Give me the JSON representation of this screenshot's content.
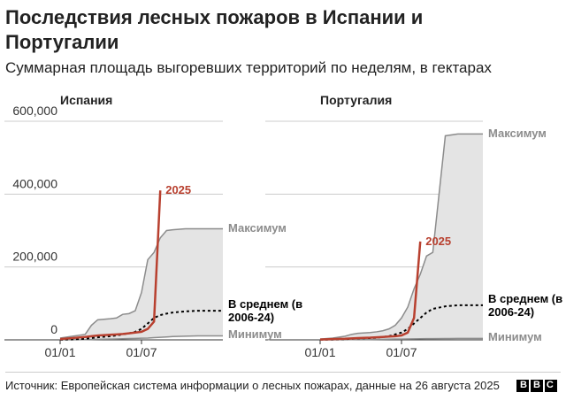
{
  "title": "Последствия лесных пожаров в Испании и Португалии",
  "subtitle": "Суммарная площадь выгоревших территорий по неделям, в гектарах",
  "source": "Источник: Европейская система информации о лесных пожарах, данные на 26 августа 2025",
  "logo": "BBC",
  "chart_data": [
    {
      "type": "area-line",
      "title": "Испания",
      "x": [
        0,
        4,
        8,
        10,
        12,
        16,
        18,
        20,
        22,
        24,
        26,
        28,
        30,
        32,
        34,
        36,
        40,
        44,
        48,
        52
      ],
      "xlim": [
        0,
        52
      ],
      "xticks": [
        {
          "value": 0,
          "label": "01/01"
        },
        {
          "value": 26,
          "label": "01/07"
        }
      ],
      "ylim": [
        0,
        600000
      ],
      "yticks": [
        {
          "value": 0,
          "label": "0"
        },
        {
          "value": 200000,
          "label": "200,000"
        },
        {
          "value": 400000,
          "label": "400,000"
        },
        {
          "value": 600000,
          "label": "600,000"
        }
      ],
      "grid": true,
      "series": [
        {
          "name": "Максимум",
          "color": "#8c8c8c",
          "values": [
            5000,
            10000,
            15000,
            40000,
            55000,
            58000,
            60000,
            70000,
            72000,
            80000,
            130000,
            220000,
            240000,
            280000,
            300000,
            302000,
            305000,
            305000,
            305000,
            305000
          ]
        },
        {
          "name": "В среднем (в 2006-24)",
          "color": "#000000",
          "values": [
            500,
            1500,
            3000,
            5000,
            7000,
            10000,
            12000,
            15000,
            18000,
            22000,
            30000,
            45000,
            60000,
            68000,
            72000,
            75000,
            78000,
            80000,
            80000,
            80000
          ]
        },
        {
          "name": "Минимум",
          "color": "#8c8c8c",
          "values": [
            0,
            200,
            500,
            1000,
            1500,
            2000,
            2500,
            3000,
            3500,
            4000,
            4500,
            5000,
            6000,
            7000,
            8000,
            9000,
            10000,
            11000,
            11000,
            11000
          ]
        },
        {
          "name": "2025",
          "color": "#b8402f",
          "values": [
            2000,
            5000,
            8000,
            10000,
            12000,
            14000,
            15000,
            16000,
            18000,
            20000,
            22000,
            30000,
            50000,
            410000,
            null,
            null,
            null,
            null,
            null,
            null
          ]
        }
      ]
    },
    {
      "type": "area-line",
      "title": "Португалия",
      "x": [
        0,
        4,
        8,
        10,
        12,
        16,
        18,
        20,
        22,
        24,
        26,
        28,
        30,
        32,
        34,
        36,
        40,
        44,
        48,
        52
      ],
      "xlim": [
        0,
        52
      ],
      "xticks": [
        {
          "value": 0,
          "label": "01/01"
        },
        {
          "value": 26,
          "label": "01/07"
        }
      ],
      "ylim": [
        0,
        600000
      ],
      "grid": true,
      "series": [
        {
          "name": "Максимум",
          "color": "#8c8c8c",
          "values": [
            2000,
            5000,
            10000,
            15000,
            18000,
            20000,
            22000,
            25000,
            30000,
            40000,
            60000,
            90000,
            140000,
            180000,
            230000,
            240000,
            560000,
            565000,
            565000,
            565000
          ]
        },
        {
          "name": "В среднем (в 2006-24)",
          "color": "#000000",
          "values": [
            500,
            1000,
            2000,
            3000,
            4000,
            5000,
            6000,
            8000,
            10000,
            15000,
            20000,
            30000,
            45000,
            60000,
            75000,
            85000,
            92000,
            95000,
            95000,
            95000
          ]
        },
        {
          "name": "Минимум",
          "color": "#8c8c8c",
          "values": [
            0,
            100,
            300,
            500,
            800,
            1000,
            1200,
            1500,
            1800,
            2000,
            2200,
            2500,
            2800,
            3000,
            3200,
            3400,
            3600,
            3800,
            4000,
            4000
          ]
        },
        {
          "name": "2025",
          "color": "#b8402f",
          "values": [
            1000,
            2000,
            3000,
            4000,
            5000,
            6000,
            7000,
            8000,
            9000,
            10000,
            12000,
            20000,
            60000,
            270000,
            null,
            null,
            null,
            null,
            null,
            null
          ]
        }
      ]
    }
  ]
}
